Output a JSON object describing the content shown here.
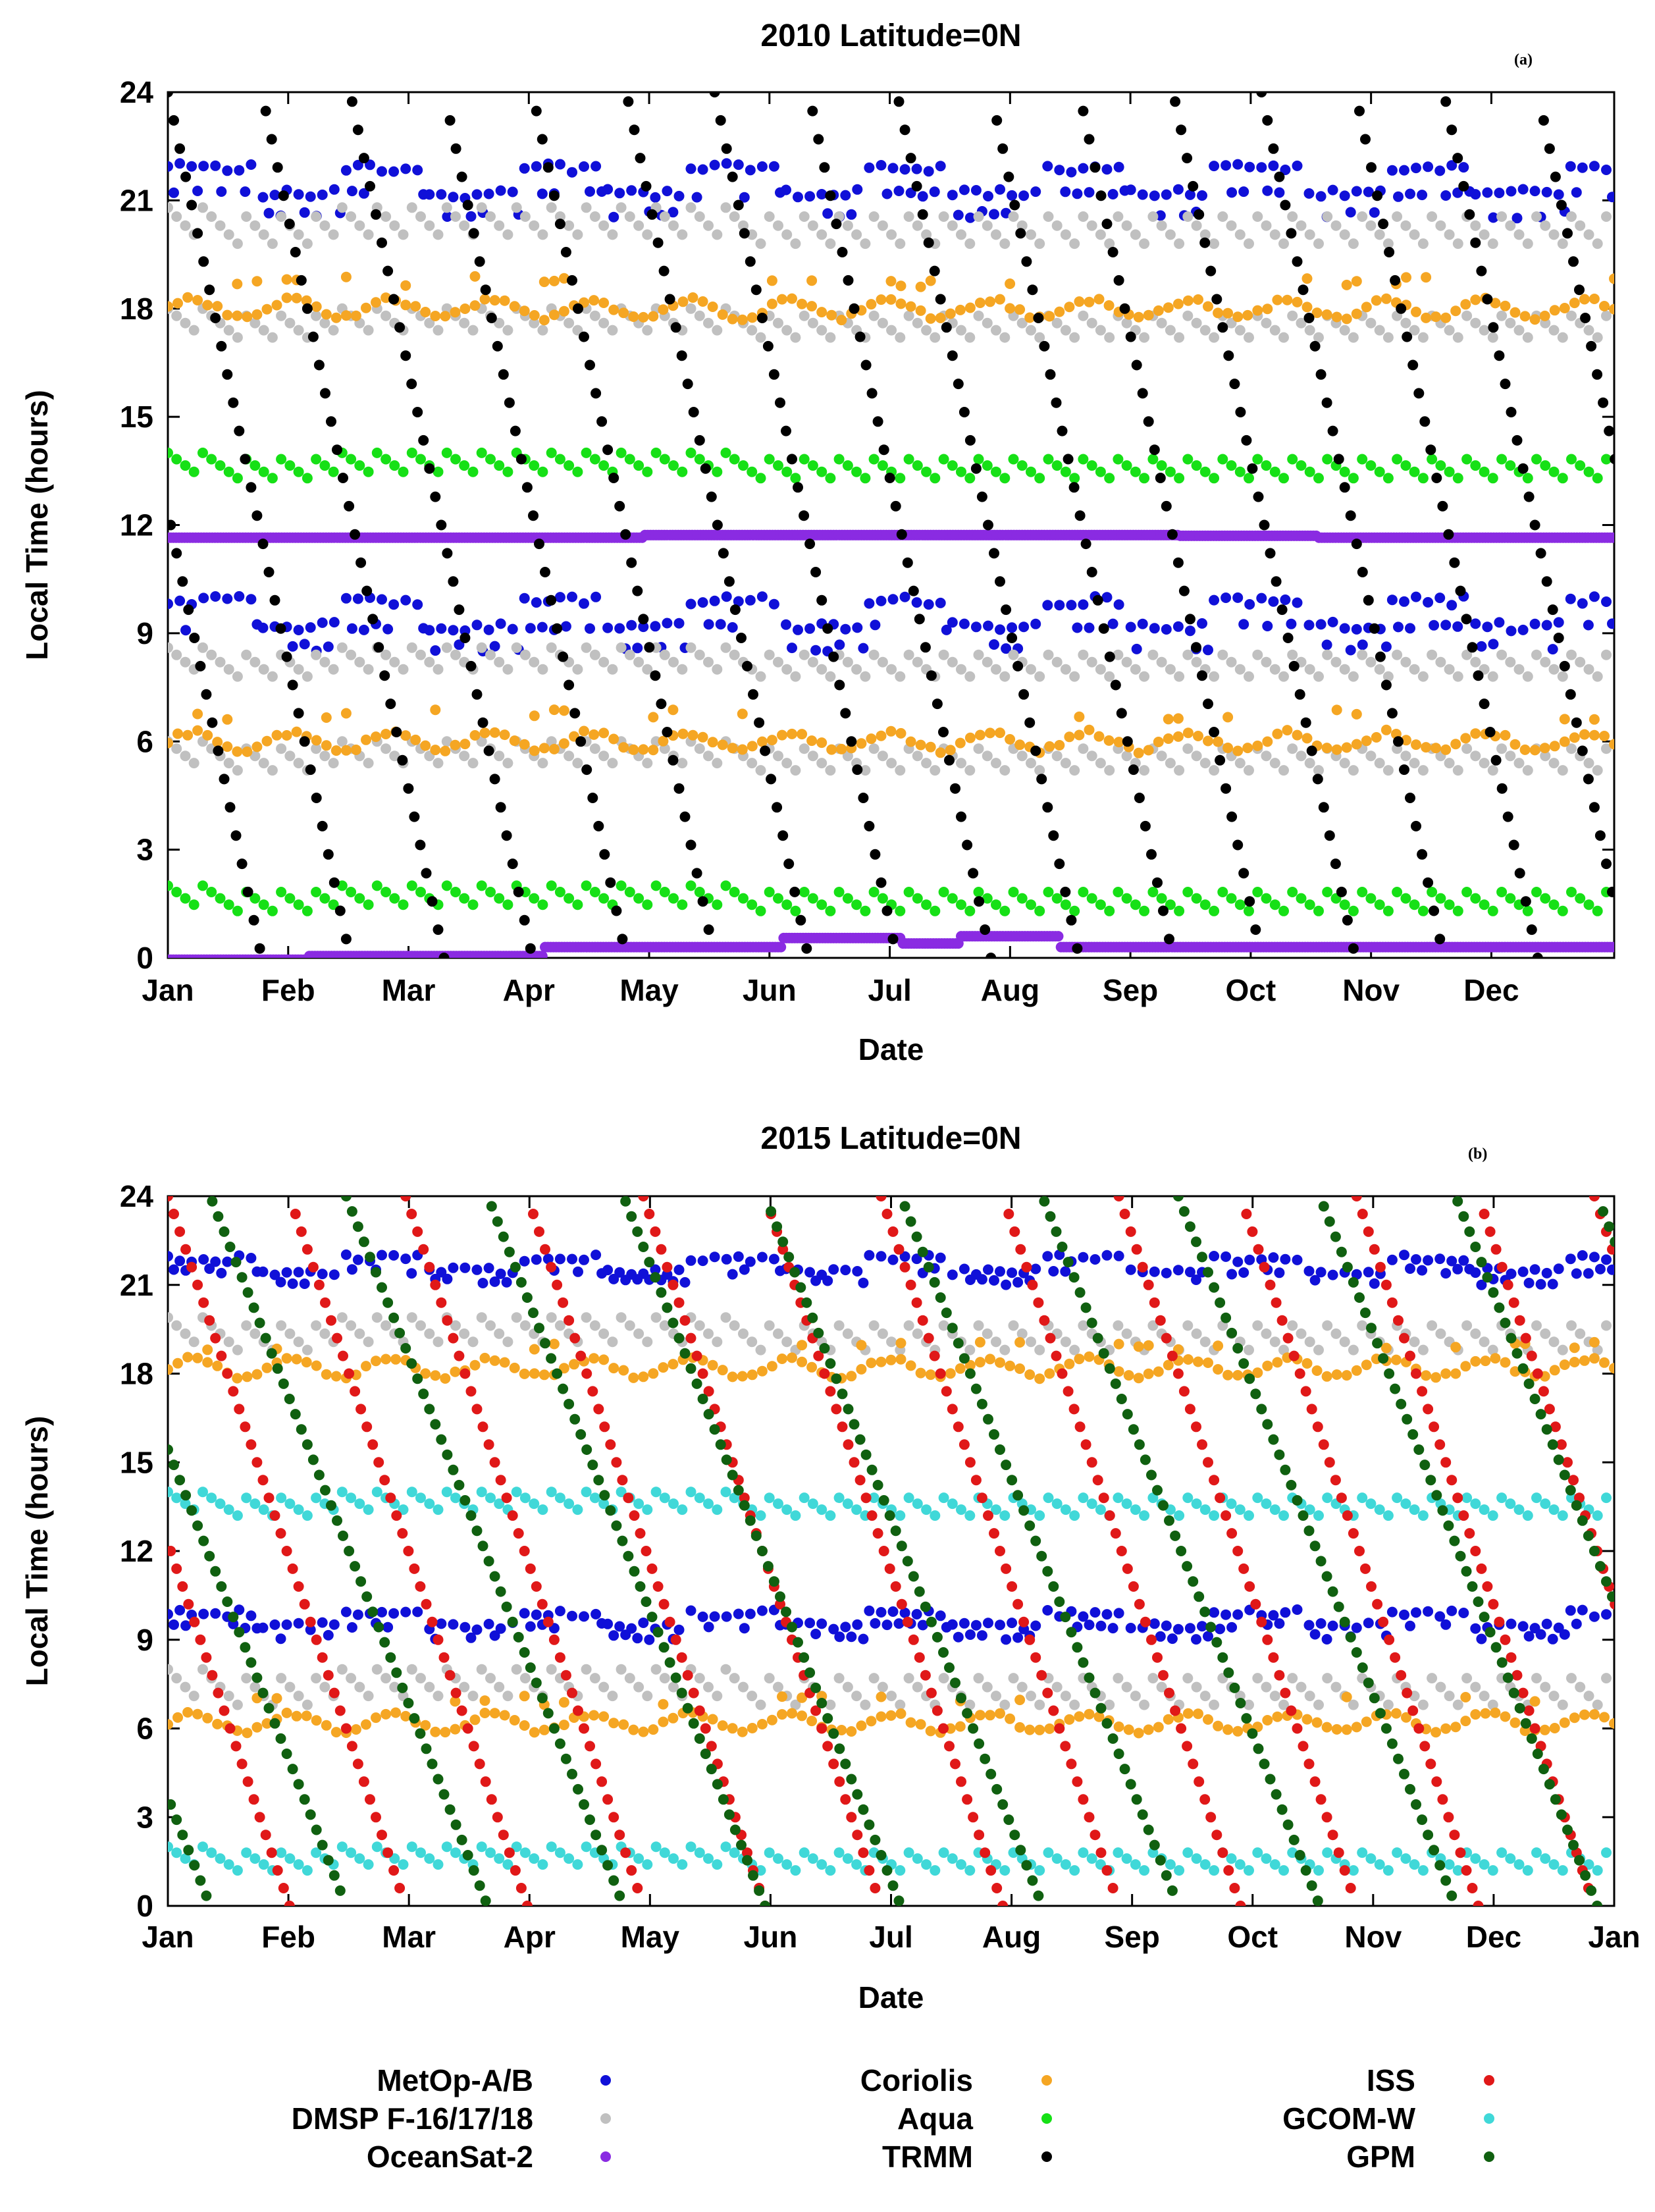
{
  "chart_data": [
    {
      "type": "scatter",
      "panel_tag": "(a)",
      "title": "2010  Latitude=0N",
      "xlabel": "Date",
      "ylabel": "Local Time (hours)",
      "ylim": [
        0,
        24
      ],
      "yticks": [
        "0",
        "3",
        "6",
        "9",
        "12",
        "15",
        "18",
        "21",
        "24"
      ],
      "xticks": [
        "Jan",
        "Feb",
        "Mar",
        "Apr",
        "May",
        "Jun",
        "Jul",
        "Aug",
        "Sep",
        "Oct",
        "Nov",
        "Dec"
      ],
      "xlim_days": [
        0,
        365
      ],
      "series": [
        {
          "name": "MetOp-A/B",
          "color": "#1010d8",
          "pattern": "doublestripe",
          "bands": [
            [
              20.6,
              21.9
            ],
            [
              8.6,
              9.9
            ]
          ]
        },
        {
          "name": "DMSP F-16/17/18",
          "color": "#c0c0c0",
          "pattern": "sawtooth",
          "bands": [
            [
              19.8,
              20.8
            ],
            [
              17.2,
              18.0
            ],
            [
              7.8,
              8.6
            ],
            [
              5.2,
              6.0
            ]
          ]
        },
        {
          "name": "Coriolis",
          "color": "#f5a623",
          "pattern": "wavy",
          "bands": [
            [
              18.0,
              0.25
            ],
            [
              6.0,
              0.25
            ]
          ]
        },
        {
          "name": "Aqua",
          "color": "#16e016",
          "pattern": "sawtooth",
          "bands": [
            [
              13.3,
              14.0
            ],
            [
              1.3,
              2.0
            ]
          ]
        },
        {
          "name": "OceanSat-2",
          "color": "#8a2be2",
          "pattern": "line",
          "levels": [
            [
              0,
              11.65
            ],
            [
              120,
              11.72
            ],
            [
              255,
              11.7
            ],
            [
              290,
              11.65
            ],
            [
              365,
              11.65
            ]
          ],
          "levels_low": [
            [
              0,
              -0.05
            ],
            [
              35,
              0.05
            ],
            [
              95,
              0.3
            ],
            [
              155,
              0.55
            ],
            [
              185,
              0.4
            ],
            [
              200,
              0.6
            ],
            [
              225,
              0.3
            ],
            [
              365,
              0.3
            ]
          ]
        },
        {
          "name": "TRMM",
          "color": "#000000",
          "pattern": "precess",
          "period_days": 46,
          "phase": 0
        }
      ]
    },
    {
      "type": "scatter",
      "panel_tag": "(b)",
      "title": "2015  Latitude=0N",
      "xlabel": "Date",
      "ylabel": "Local Time (hours)",
      "ylim": [
        0,
        24
      ],
      "yticks": [
        "0",
        "3",
        "6",
        "9",
        "12",
        "15",
        "18",
        "21",
        "24"
      ],
      "xticks": [
        "Jan",
        "Feb",
        "Mar",
        "Apr",
        "May",
        "Jun",
        "Jul",
        "Aug",
        "Sep",
        "Oct",
        "Nov",
        "Dec",
        "Jan"
      ],
      "xlim_days": [
        0,
        365
      ],
      "series": [
        {
          "name": "MetOp-A/B",
          "color": "#1010d8",
          "pattern": "doublestripe",
          "bands": [
            [
              21.1,
              21.9
            ],
            [
              9.1,
              9.9
            ]
          ]
        },
        {
          "name": "DMSP F-16/17/18",
          "color": "#c0c0c0",
          "pattern": "sawtooth",
          "bands": [
            [
              18.8,
              19.9
            ],
            [
              6.8,
              8.0
            ]
          ]
        },
        {
          "name": "Coriolis",
          "color": "#f5a623",
          "pattern": "wavy",
          "bands": [
            [
              18.2,
              0.3
            ],
            [
              6.2,
              0.3
            ]
          ]
        },
        {
          "name": "GCOM-W",
          "color": "#40d8d8",
          "pattern": "sawtooth",
          "bands": [
            [
              13.2,
              14.0
            ],
            [
              1.2,
              2.0
            ]
          ]
        },
        {
          "name": "ISS",
          "color": "#e01818",
          "pattern": "precess",
          "period_days": 60,
          "phase": 0
        },
        {
          "name": "GPM",
          "color": "#106010",
          "pattern": "precess",
          "period_days": 70,
          "phase": 25
        }
      ]
    }
  ],
  "legend": {
    "columns": [
      [
        {
          "label": "MetOp-A/B",
          "color": "#1010d8"
        },
        {
          "label": "DMSP F-16/17/18",
          "color": "#c0c0c0"
        },
        {
          "label": "OceanSat-2",
          "color": "#8a2be2"
        }
      ],
      [
        {
          "label": "Coriolis",
          "color": "#f5a623"
        },
        {
          "label": "Aqua",
          "color": "#16e016"
        },
        {
          "label": "TRMM",
          "color": "#000000"
        }
      ],
      [
        {
          "label": "ISS",
          "color": "#e01818"
        },
        {
          "label": "GCOM-W",
          "color": "#40d8d8"
        },
        {
          "label": "GPM",
          "color": "#106010"
        }
      ]
    ]
  }
}
